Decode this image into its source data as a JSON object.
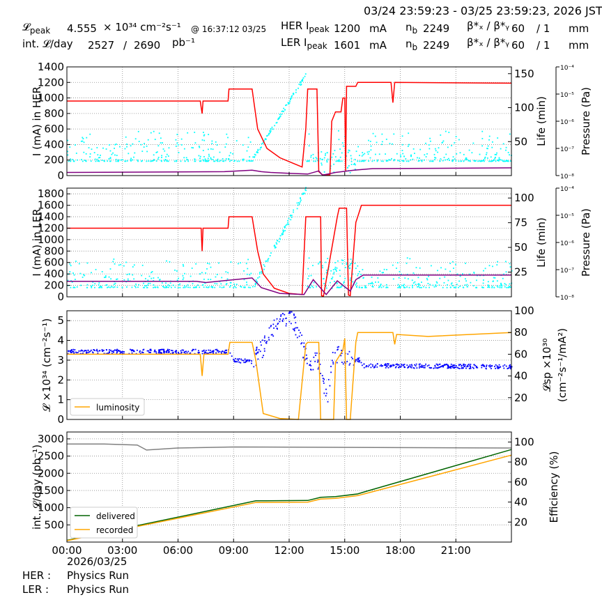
{
  "header": {
    "date_range": "03/24 23:59:23 - 03/25 23:59:23, 2026 JST",
    "lpeak_label": "𝓛",
    "lpeak_sub": "peak",
    "lpeak_value": "4.555",
    "lpeak_unit": "× 10³⁴ cm⁻²s⁻¹",
    "lpeak_time": "@ 16:37:12 03/25",
    "intl_label": "int. 𝓛/day",
    "intl_value1": "2527",
    "intl_sep": "/",
    "intl_value2": "2690",
    "intl_unit": "pb⁻¹",
    "her_label": "HER I",
    "her_sub": "peak",
    "her_value": "1200",
    "her_unit": "mA",
    "her_nb_label": "n",
    "her_nb_sub": "b",
    "her_nb_value": "2249",
    "her_beta_label": "β*ₓ / β*ᵧ",
    "her_beta_x": "60",
    "her_beta_y": "/ 1",
    "her_beta_unit": "mm",
    "ler_label": "LER I",
    "ler_sub": "peak",
    "ler_value": "1601",
    "ler_unit": "mA",
    "ler_nb_label": "n",
    "ler_nb_sub": "b",
    "ler_nb_value": "2249",
    "ler_beta_label": "β*ₓ / β*ᵧ",
    "ler_beta_x": "60",
    "ler_beta_y": "/ 1",
    "ler_beta_unit": "mm"
  },
  "footer": {
    "date": "2026/03/25",
    "her_label": "HER :",
    "her_mode": "Physics Run",
    "ler_label": "LER :",
    "ler_mode": "Physics Run"
  },
  "colors": {
    "current": "#ff0000",
    "lifetime": "#00ffff",
    "pressure": "#800080",
    "luminosity": "#ffa500",
    "specific_lumi": "#0000ff",
    "delivered": "#006400",
    "recorded": "#ffa500",
    "efficiency": "#808080"
  },
  "chart_data": [
    {
      "type": "line",
      "panel": "HER",
      "ylabel": "I (mA) in HER",
      "ylabel_right": "Life (min)",
      "ylabel_right2": "Pressure (Pa)",
      "xlim": [
        0,
        24
      ],
      "ylim": [
        0,
        1400
      ],
      "yticks": [
        0,
        200,
        400,
        600,
        800,
        1000,
        1200,
        1400
      ],
      "ylim_right": [
        0,
        160
      ],
      "yticks_right": [
        50,
        100,
        150
      ],
      "pressure_scale": "log",
      "pressure_ticks": [
        "10⁻⁴",
        "10⁻⁵",
        "10⁻⁶",
        "10⁻⁷",
        "10⁻⁸"
      ],
      "series": [
        {
          "role": "current",
          "x": [
            0,
            7.2,
            7.25,
            7.3,
            7.35,
            8.7,
            8.75,
            10.0,
            10.3,
            10.8,
            11.5,
            12.2,
            12.7,
            12.9,
            13.0,
            13.1,
            13.5,
            13.6,
            13.7,
            13.75,
            13.8,
            14.2,
            14.3,
            14.5,
            14.8,
            14.9,
            15.0,
            15.05,
            15.1,
            15.6,
            15.7,
            15.8,
            17.5,
            17.6,
            17.7,
            24
          ],
          "y": [
            960,
            960,
            880,
            800,
            960,
            960,
            1115,
            1115,
            600,
            350,
            230,
            160,
            110,
            600,
            1115,
            1115,
            1115,
            50,
            30,
            20,
            10,
            10,
            700,
            820,
            820,
            1000,
            1000,
            60,
            1150,
            1150,
            1200,
            1200,
            1200,
            940,
            1200,
            1190
          ]
        },
        {
          "role": "pressure",
          "x": [
            0,
            8.5,
            10,
            10.5,
            11,
            12,
            13,
            13.6,
            13.8,
            14.5,
            15.5,
            16.5,
            24
          ],
          "y": [
            40,
            50,
            70,
            50,
            40,
            30,
            20,
            60,
            5,
            40,
            70,
            90,
            100
          ]
        }
      ]
    },
    {
      "type": "line",
      "panel": "LER",
      "ylabel": "I (mA) in LER",
      "ylabel_right": "Life (min)",
      "ylabel_right2": "Pressure (Pa)",
      "xlim": [
        0,
        24
      ],
      "ylim": [
        0,
        1900
      ],
      "yticks": [
        0,
        200,
        400,
        600,
        800,
        1000,
        1200,
        1400,
        1600,
        1800
      ],
      "ylim_right": [
        0,
        110
      ],
      "yticks_right": [
        25,
        50,
        75,
        100
      ],
      "pressure_scale": "log",
      "pressure_ticks": [
        "10⁻⁴",
        "10⁻⁵",
        "10⁻⁶",
        "10⁻⁷",
        "10⁻⁸"
      ],
      "series": [
        {
          "role": "current",
          "x": [
            0,
            7.25,
            7.3,
            7.35,
            8.7,
            8.75,
            10.0,
            10.3,
            10.6,
            11.2,
            12.0,
            12.7,
            12.9,
            13.7,
            13.75,
            13.85,
            14.6,
            14.7,
            15.1,
            15.2,
            15.3,
            15.6,
            15.7,
            15.9,
            24
          ],
          "y": [
            1200,
            1200,
            800,
            1200,
            1200,
            1400,
            1400,
            800,
            400,
            150,
            60,
            40,
            1400,
            1400,
            20,
            10,
            1400,
            1550,
            1550,
            30,
            20,
            1300,
            1400,
            1600,
            1600
          ]
        },
        {
          "role": "pressure",
          "x": [
            0,
            7.0,
            7.5,
            8.7,
            10.0,
            10.5,
            11.5,
            12.8,
            13.3,
            14.0,
            14.6,
            15.3,
            15.6,
            16.0,
            24
          ],
          "y": [
            270,
            270,
            250,
            290,
            330,
            160,
            60,
            40,
            300,
            40,
            280,
            100,
            300,
            380,
            380
          ]
        }
      ]
    },
    {
      "type": "line",
      "panel": "Luminosity",
      "ylabel": "𝓛 ×10³⁴ (cm⁻²s⁻¹)",
      "ylabel_right": "𝓛sp ×10³⁰ (cm⁻²s⁻¹/mA²)",
      "xlim": [
        0,
        24
      ],
      "ylim": [
        0,
        5.5
      ],
      "yticks": [
        0,
        1,
        2,
        3,
        4,
        5
      ],
      "ylim_right": [
        0,
        100
      ],
      "yticks_right": [
        20,
        40,
        60,
        80,
        100
      ],
      "legend": "luminosity",
      "legend_position": "lower-left",
      "series": [
        {
          "name": "luminosity",
          "role": "luminosity",
          "x": [
            0,
            7.2,
            7.3,
            7.4,
            8.7,
            8.8,
            10.0,
            10.2,
            10.6,
            11.5,
            12.5,
            12.9,
            13.0,
            13.6,
            13.7,
            13.8,
            14.4,
            14.5,
            14.9,
            15.0,
            15.1,
            15.3,
            15.6,
            15.7,
            15.9,
            17.6,
            17.7,
            17.8,
            19.5,
            24
          ],
          "y": [
            3.3,
            3.3,
            2.2,
            3.3,
            3.3,
            3.9,
            3.9,
            3.0,
            0.3,
            0.05,
            0.0,
            3.8,
            3.9,
            3.9,
            0.0,
            0.0,
            0.0,
            2.9,
            3.5,
            4.1,
            0.0,
            0.0,
            3.9,
            4.4,
            4.4,
            4.4,
            3.8,
            4.3,
            4.2,
            4.4
          ]
        },
        {
          "name": "",
          "role": "specific",
          "x": [
            0,
            8.8,
            9.0,
            10.0,
            10.5,
            11.0,
            11.5,
            12.0,
            12.4,
            12.8,
            13.0,
            13.6,
            14.0,
            14.4,
            15.0,
            15.8,
            16.0,
            24
          ],
          "y": [
            63,
            63,
            55,
            54,
            65,
            80,
            93,
            95,
            85,
            60,
            55,
            54,
            20,
            62,
            57,
            55,
            50,
            49
          ]
        }
      ]
    },
    {
      "type": "line",
      "panel": "Integrated",
      "ylabel": "int. 𝓛/day (pb⁻¹)",
      "ylabel_right": "Efficiency (%)",
      "xlabel": "",
      "xlim": [
        0,
        24
      ],
      "ylim": [
        0,
        3200
      ],
      "yticks": [
        500,
        1000,
        1500,
        2000,
        2500,
        3000
      ],
      "ylim_right": [
        0,
        110
      ],
      "yticks_right": [
        20,
        40,
        60,
        80,
        100
      ],
      "xticks": [
        "00:00",
        "03:00",
        "06:00",
        "09:00",
        "12:00",
        "15:00",
        "18:00",
        "21:00"
      ],
      "legend_position": "lower-left",
      "series": [
        {
          "name": "delivered",
          "x": [
            0,
            10.2,
            13.0,
            13.7,
            14.5,
            15.7,
            16.2,
            24
          ],
          "y": [
            50,
            1200,
            1210,
            1300,
            1320,
            1400,
            1480,
            2690
          ]
        },
        {
          "name": "recorded",
          "x": [
            0,
            10.2,
            13.0,
            13.7,
            14.5,
            15.7,
            16.2,
            24
          ],
          "y": [
            40,
            1150,
            1160,
            1250,
            1270,
            1350,
            1420,
            2527
          ]
        },
        {
          "name": "",
          "role": "efficiency",
          "x": [
            0,
            2,
            3.8,
            4.1,
            4.3,
            6,
            9,
            24
          ],
          "y": [
            98,
            98,
            97,
            94,
            92,
            94,
            95,
            94
          ]
        }
      ]
    }
  ]
}
